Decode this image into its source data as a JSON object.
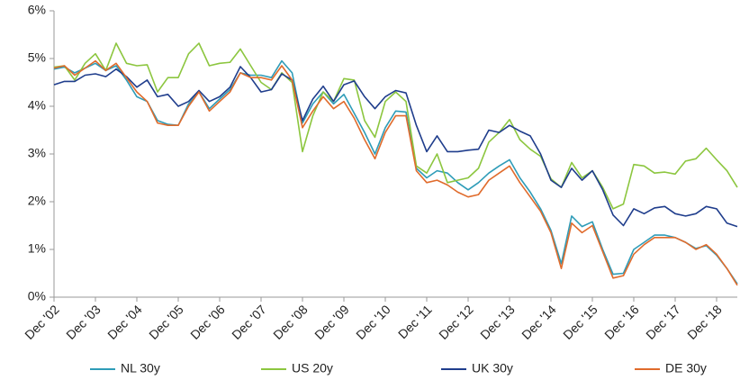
{
  "chart_data": {
    "type": "line",
    "categories": [
      "Dec '02",
      null,
      null,
      null,
      "Dec '03",
      null,
      null,
      null,
      "Dec '04",
      null,
      null,
      null,
      "Dec '05",
      null,
      null,
      null,
      "Dec '06",
      null,
      null,
      null,
      "Dec '07",
      null,
      null,
      null,
      "Dec '08",
      null,
      null,
      null,
      "Dec '09",
      null,
      null,
      null,
      "Dec '10",
      null,
      null,
      null,
      "Dec '11",
      null,
      null,
      null,
      "Dec '12",
      null,
      null,
      null,
      "Dec '13",
      null,
      null,
      null,
      "Dec '14",
      null,
      null,
      null,
      "Dec '15",
      null,
      null,
      null,
      "Dec '16",
      null,
      null,
      null,
      "Dec '17",
      null,
      null,
      null,
      "Dec '18",
      null,
      null
    ],
    "series": [
      {
        "name": "NL 30y",
        "color": "#2e9cb8",
        "values": [
          4.78,
          4.82,
          4.7,
          4.8,
          4.9,
          4.75,
          4.85,
          4.55,
          4.2,
          4.1,
          3.7,
          3.62,
          3.6,
          4.05,
          4.3,
          3.95,
          4.15,
          4.35,
          4.7,
          4.65,
          4.65,
          4.6,
          4.95,
          4.7,
          3.65,
          4.05,
          4.3,
          4.05,
          4.25,
          3.85,
          3.45,
          3.0,
          3.55,
          3.9,
          3.88,
          2.7,
          2.5,
          2.65,
          2.6,
          2.4,
          2.25,
          2.4,
          2.6,
          2.75,
          2.88,
          2.5,
          2.2,
          1.85,
          1.4,
          0.7,
          1.7,
          1.48,
          1.58,
          1.0,
          0.48,
          0.5,
          1.0,
          1.15,
          1.3,
          1.3,
          1.25,
          1.15,
          1.02,
          1.08,
          0.88,
          0.6,
          0.28
        ]
      },
      {
        "name": "US 20y",
        "color": "#8cc63f",
        "values": [
          4.82,
          4.85,
          4.55,
          4.9,
          5.1,
          4.75,
          5.32,
          4.9,
          4.85,
          4.87,
          4.3,
          4.6,
          4.6,
          5.1,
          5.32,
          4.85,
          4.9,
          4.92,
          5.2,
          4.85,
          4.5,
          4.35,
          4.7,
          4.5,
          3.05,
          3.8,
          4.3,
          4.1,
          4.58,
          4.55,
          3.7,
          3.35,
          4.1,
          4.3,
          4.1,
          2.75,
          2.6,
          3.0,
          2.4,
          2.45,
          2.5,
          2.7,
          3.25,
          3.45,
          3.72,
          3.3,
          3.1,
          2.95,
          2.48,
          2.3,
          2.82,
          2.5,
          2.65,
          2.3,
          1.85,
          1.95,
          2.78,
          2.75,
          2.6,
          2.62,
          2.58,
          2.85,
          2.9,
          3.12,
          2.88,
          2.65,
          2.3
        ]
      },
      {
        "name": "UK 30y",
        "color": "#1f3d8c",
        "values": [
          4.45,
          4.52,
          4.52,
          4.65,
          4.68,
          4.62,
          4.78,
          4.62,
          4.4,
          4.55,
          4.2,
          4.25,
          4.0,
          4.1,
          4.33,
          4.1,
          4.2,
          4.4,
          4.83,
          4.6,
          4.3,
          4.35,
          4.68,
          4.55,
          3.7,
          4.15,
          4.42,
          4.1,
          4.45,
          4.53,
          4.2,
          3.95,
          4.2,
          4.33,
          4.28,
          3.6,
          3.05,
          3.38,
          3.05,
          3.05,
          3.08,
          3.1,
          3.5,
          3.45,
          3.6,
          3.48,
          3.38,
          3.0,
          2.45,
          2.3,
          2.7,
          2.45,
          2.65,
          2.25,
          1.72,
          1.5,
          1.85,
          1.75,
          1.87,
          1.9,
          1.75,
          1.7,
          1.75,
          1.9,
          1.85,
          1.55,
          1.48
        ]
      },
      {
        "name": "DE 30y",
        "color": "#e06b2c",
        "values": [
          4.8,
          4.85,
          4.65,
          4.8,
          4.95,
          4.75,
          4.9,
          4.6,
          4.3,
          4.1,
          3.65,
          3.6,
          3.6,
          4.0,
          4.3,
          3.9,
          4.1,
          4.3,
          4.7,
          4.6,
          4.6,
          4.55,
          4.85,
          4.55,
          3.55,
          3.9,
          4.2,
          3.95,
          4.1,
          3.75,
          3.3,
          2.9,
          3.45,
          3.8,
          3.8,
          2.65,
          2.4,
          2.45,
          2.35,
          2.2,
          2.1,
          2.15,
          2.45,
          2.6,
          2.75,
          2.4,
          2.1,
          1.8,
          1.35,
          0.6,
          1.55,
          1.35,
          1.5,
          0.95,
          0.4,
          0.45,
          0.9,
          1.1,
          1.25,
          1.25,
          1.25,
          1.15,
          1.0,
          1.1,
          0.9,
          0.6,
          0.25
        ]
      }
    ],
    "ylim": [
      0,
      6
    ],
    "yticks": [
      {
        "value": 0,
        "label": "0%"
      },
      {
        "value": 1,
        "label": "1%"
      },
      {
        "value": 2,
        "label": "2%"
      },
      {
        "value": 3,
        "label": "3%"
      },
      {
        "value": 4,
        "label": "4%"
      },
      {
        "value": 5,
        "label": "5%"
      },
      {
        "value": 6,
        "label": "6%"
      }
    ],
    "grid": false
  }
}
